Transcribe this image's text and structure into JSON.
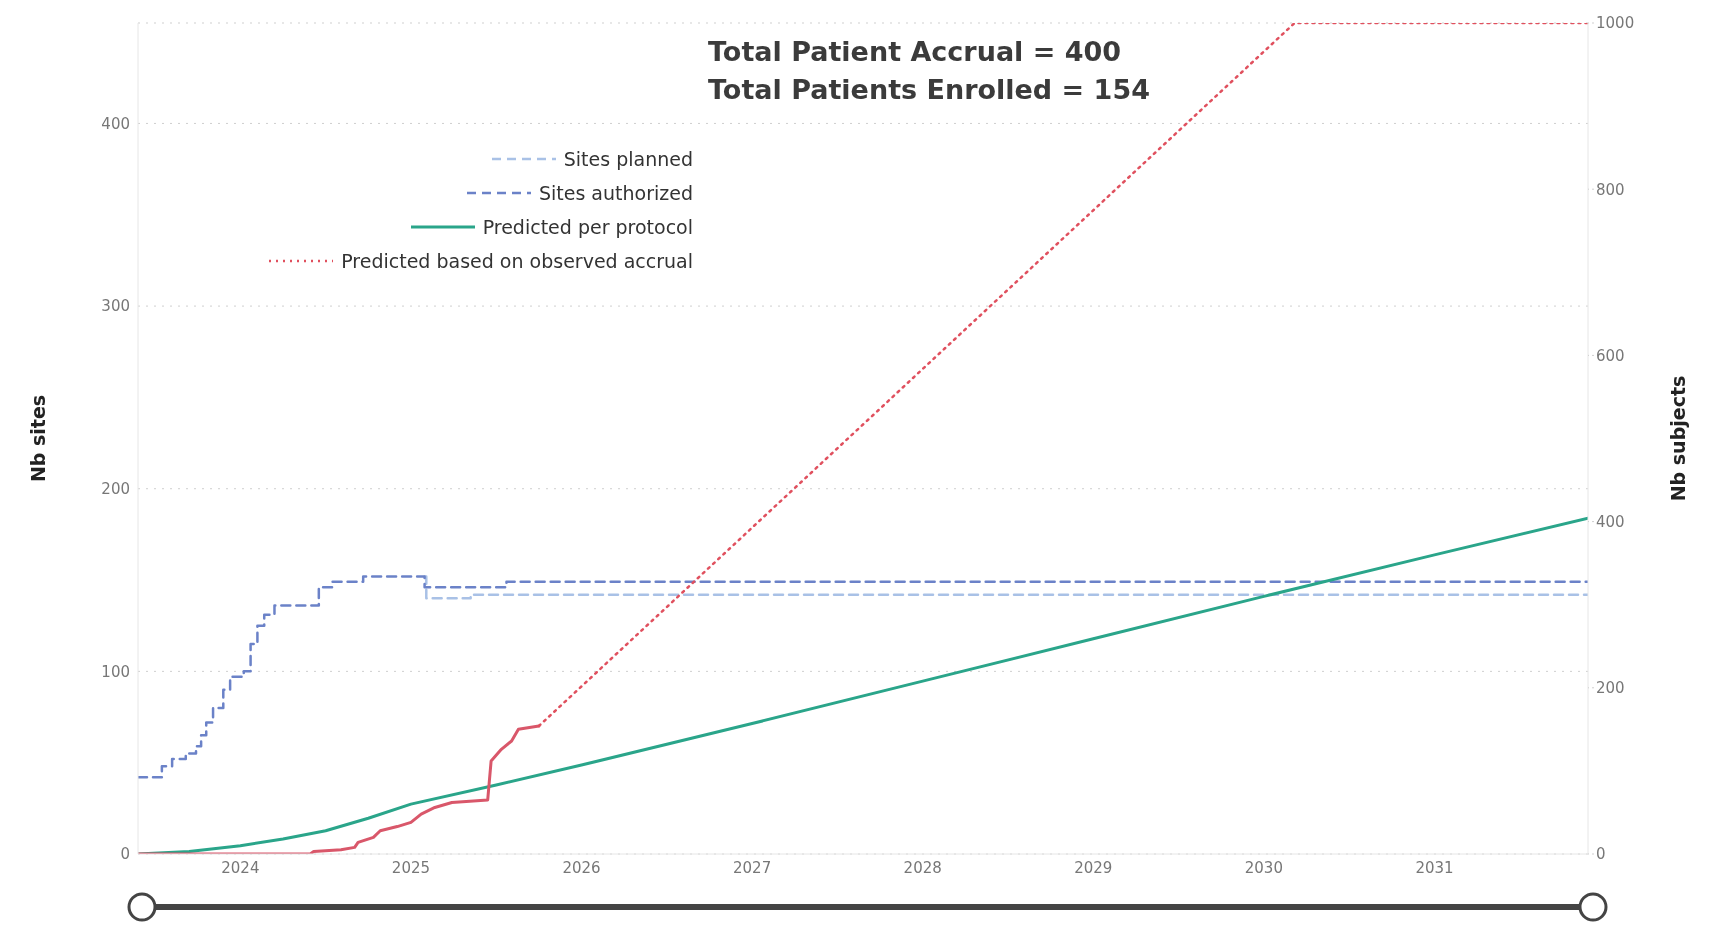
{
  "chart_data": {
    "type": "line",
    "title": "Total Patient Accrual = 400",
    "subtitle": "Total Patients Enrolled = 154",
    "ylabel": "Nb sites",
    "y2label": "Nb subjects",
    "xlim": [
      2023.4,
      2031.9
    ],
    "xticks": [
      2024,
      2025,
      2026,
      2027,
      2028,
      2029,
      2030,
      2031
    ],
    "ylim": [
      0,
      455
    ],
    "yticks": [
      0,
      100,
      200,
      300,
      400
    ],
    "y2lim": [
      0,
      1000
    ],
    "y2ticks": [
      0,
      200,
      400,
      600,
      800,
      1000
    ],
    "grid": "y",
    "legend": "top left",
    "marker": "none",
    "series": [
      {
        "name": "Sites planned",
        "type": "step",
        "line_style": "dashed",
        "color": "#a9c1e6",
        "x": [
          2025.08,
          2025.09,
          2025.35,
          2031.9
        ],
        "values": [
          152,
          140,
          142,
          142
        ]
      },
      {
        "name": "Sites authorized",
        "type": "step",
        "line_style": "dashed",
        "color": "#6b82c8",
        "x": [
          2023.4,
          2023.54,
          2023.6,
          2023.68,
          2023.74,
          2023.77,
          2023.8,
          2023.84,
          2023.9,
          2023.94,
          2024.02,
          2024.06,
          2024.1,
          2024.14,
          2024.2,
          2024.46,
          2024.54,
          2024.72,
          2025.08,
          2025.56,
          2031.9
        ],
        "values": [
          42,
          48,
          52,
          55,
          59,
          65,
          72,
          80,
          90,
          97,
          100,
          115,
          125,
          131,
          136,
          146,
          149,
          152,
          146,
          149,
          149
        ]
      },
      {
        "name": "Predicted per protocol",
        "axis": "y2",
        "line_style": "solid",
        "color": "#2aa58a",
        "x": [
          2023.4,
          2023.7,
          2024,
          2024.25,
          2024.5,
          2024.75,
          2025,
          2025.5,
          2026,
          2027,
          2028,
          2029,
          2030,
          2031,
          2031.9
        ],
        "values": [
          0,
          3,
          10,
          18,
          28,
          43,
          60,
          83,
          107,
          157,
          208,
          259,
          310,
          360,
          404
        ]
      },
      {
        "axis": "y2",
        "line_style": "solid",
        "color": "#d9576a",
        "x": [
          2023.4,
          2024.41,
          2024.43,
          2024.59,
          2024.67,
          2024.69,
          2024.78,
          2024.82,
          2024.92,
          2025.0,
          2025.06,
          2025.14,
          2025.24,
          2025.45,
          2025.47,
          2025.53,
          2025.59,
          2025.63,
          2025.75
        ],
        "values": [
          0,
          0,
          3,
          5,
          8,
          14,
          20,
          28,
          33,
          38,
          48,
          56,
          62,
          65,
          112,
          126,
          136,
          150,
          154
        ]
      },
      {
        "name": "Predicted based on observed accrual",
        "axis": "y2",
        "line_style": "dotted",
        "color": "#e0505e",
        "x": [
          2025.75,
          2030.18,
          2031.9
        ],
        "values": [
          154,
          1000,
          1000
        ]
      }
    ]
  }
}
